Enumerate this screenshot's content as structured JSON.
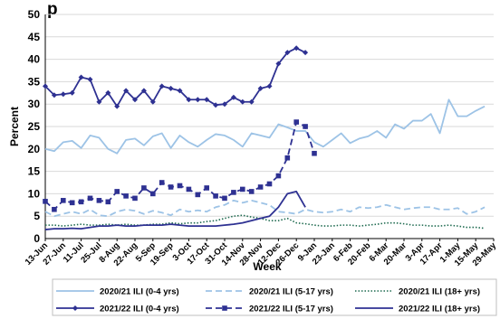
{
  "chart_data": {
    "type": "line",
    "title": "p",
    "xlabel": "Week",
    "ylabel": "Percent",
    "ylim": [
      0,
      50
    ],
    "yticks": [
      0,
      5,
      10,
      15,
      20,
      25,
      30,
      35,
      40,
      45,
      50
    ],
    "grid": "horizontal",
    "legend_position": "bottom",
    "x_tick_labels": [
      "13-Jun",
      "27-Jun",
      "11-Jul",
      "25-Jul",
      "8-Aug",
      "22-Aug",
      "5-Sep",
      "19-Sep",
      "3-Oct",
      "17-Oct",
      "31-Oct",
      "14-Nov",
      "28-Nov",
      "12-Dec",
      "26-Dec",
      "9-Jan",
      "23-Jan",
      "6-Feb",
      "20-Feb",
      "6-Mar",
      "20-Mar",
      "3-Apr",
      "17-Apr",
      "1-May",
      "15-May",
      "29-May"
    ],
    "series": [
      {
        "name": "2020/21 ILI (0-4 yrs)",
        "color": "#9dc3e6",
        "style": "solid",
        "marker": "none",
        "values": [
          20.0,
          19.5,
          21.5,
          21.8,
          20.2,
          23.0,
          22.5,
          20.0,
          19.0,
          22.0,
          22.3,
          20.8,
          22.8,
          23.5,
          20.2,
          23.0,
          21.5,
          20.5,
          22.0,
          23.3,
          23.0,
          22.0,
          20.5,
          23.5,
          23.0,
          22.5,
          25.5,
          24.8,
          24.0,
          24.0,
          21.5,
          20.5,
          22.0,
          23.5,
          21.3,
          22.3,
          22.8,
          24.0,
          22.5,
          25.5,
          24.5,
          26.3,
          26.3,
          27.8,
          23.5,
          31.0,
          27.3,
          27.3,
          28.5,
          29.5
        ]
      },
      {
        "name": "2020/21 ILI (5-17 yrs)",
        "color": "#9dc3e6",
        "style": "dashed",
        "marker": "none",
        "values": [
          6.0,
          5.0,
          5.5,
          6.0,
          5.5,
          6.5,
          5.2,
          5.0,
          6.0,
          6.5,
          6.2,
          5.5,
          6.2,
          5.8,
          5.2,
          6.5,
          6.0,
          6.3,
          6.0,
          7.0,
          7.5,
          8.5,
          8.0,
          8.5,
          8.0,
          7.5,
          6.0,
          5.8,
          5.5,
          6.5,
          6.0,
          5.8,
          6.0,
          6.5,
          6.0,
          7.0,
          6.8,
          7.0,
          7.5,
          7.0,
          6.5,
          6.8,
          7.0,
          7.0,
          6.5,
          6.5,
          6.8,
          5.5,
          6.0,
          7.0
        ]
      },
      {
        "name": "2020/21 ILI (18+ yrs)",
        "color": "#1f6b50",
        "style": "dotted",
        "marker": "none",
        "values": [
          3.0,
          3.0,
          2.8,
          3.0,
          3.2,
          3.0,
          3.0,
          3.2,
          3.0,
          3.2,
          3.0,
          3.0,
          3.2,
          3.2,
          3.5,
          3.3,
          3.5,
          3.5,
          3.8,
          4.0,
          4.5,
          5.0,
          5.2,
          4.8,
          4.5,
          4.0,
          4.0,
          4.5,
          3.5,
          3.3,
          3.0,
          2.8,
          2.8,
          3.0,
          3.0,
          2.8,
          3.0,
          3.2,
          3.5,
          3.5,
          3.3,
          3.0,
          3.0,
          2.8,
          2.8,
          3.0,
          2.8,
          2.5,
          2.5,
          2.3
        ]
      },
      {
        "name": "2021/22 ILI (0-4 yrs)",
        "color": "#2e3192",
        "style": "solid",
        "marker": "diamond",
        "values": [
          34.0,
          32.0,
          32.2,
          32.5,
          36.0,
          35.5,
          30.5,
          32.5,
          29.5,
          33.0,
          31.0,
          33.0,
          30.5,
          34.0,
          33.5,
          33.0,
          31.0,
          31.0,
          31.0,
          29.8,
          30.0,
          31.5,
          30.5,
          30.5,
          33.5,
          34.0,
          39.0,
          41.5,
          42.5,
          41.5
        ]
      },
      {
        "name": "2021/22 ILI (5-17 yrs)",
        "color": "#2e3192",
        "style": "dashed",
        "marker": "square",
        "values": [
          8.3,
          6.5,
          8.5,
          8.0,
          8.2,
          9.0,
          8.5,
          8.2,
          10.5,
          9.5,
          9.0,
          11.3,
          10.0,
          12.5,
          11.5,
          11.8,
          11.0,
          9.8,
          11.3,
          9.5,
          9.0,
          10.3,
          11.0,
          10.5,
          11.5,
          12.2,
          14.0,
          18.0,
          26.0,
          25.0,
          19.0
        ]
      },
      {
        "name": "2021/22 ILI (18+ yrs)",
        "color": "#2e3192",
        "style": "solid",
        "marker": "none",
        "values": [
          2.0,
          2.2,
          2.2,
          2.3,
          2.2,
          2.5,
          2.8,
          2.8,
          3.0,
          2.8,
          2.8,
          3.0,
          3.0,
          3.0,
          3.2,
          3.0,
          2.8,
          2.8,
          2.8,
          2.8,
          3.0,
          3.2,
          3.5,
          4.0,
          4.5,
          5.0,
          7.0,
          10.0,
          10.5,
          7.0
        ]
      }
    ]
  }
}
